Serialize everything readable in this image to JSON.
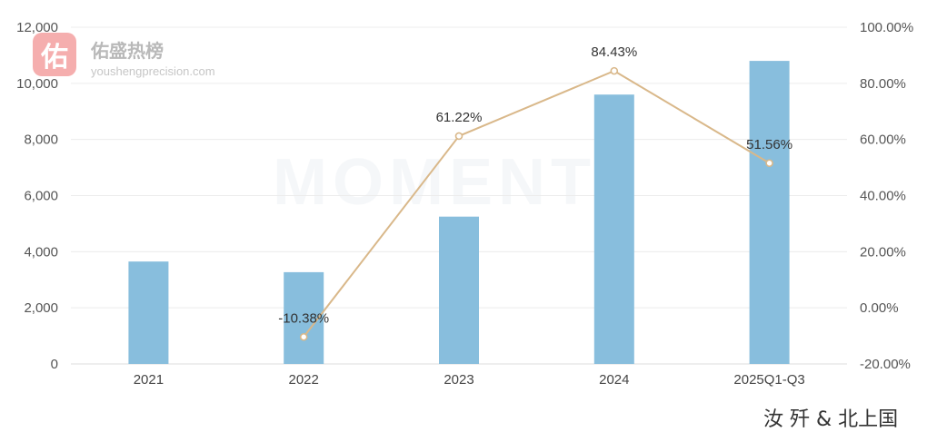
{
  "watermark": {
    "badge_char": "佑",
    "title": "佑盛热榜",
    "url": "youshengprecision.com",
    "center_text": "MOMENT"
  },
  "footer_partial_text": "汝 歼 & 北上国",
  "colors": {
    "bar": "#88bedd",
    "line": "#d9b88a",
    "grid": "#ececec"
  },
  "chart_data": {
    "type": "bar",
    "title": "",
    "xlabel": "",
    "ylabel": "",
    "categories": [
      "2021",
      "2022",
      "2023",
      "2024",
      "2025Q1-Q3"
    ],
    "series": [
      {
        "axis": "left",
        "type": "bar",
        "values": [
          3650,
          3270,
          5250,
          9600,
          10800
        ]
      },
      {
        "axis": "right",
        "type": "line",
        "values": [
          null,
          -10.38,
          61.22,
          84.43,
          51.56
        ],
        "labels": [
          "",
          "-10.38%",
          "61.22%",
          "84.43%",
          "51.56%"
        ]
      }
    ],
    "ylim": [
      0,
      12000
    ],
    "yticks": [
      "0",
      "2,000",
      "4,000",
      "6,000",
      "8,000",
      "10,000",
      "12,000"
    ],
    "y2lim": [
      -20,
      100
    ],
    "y2ticks": [
      "-20.00%",
      "0.00%",
      "20.00%",
      "40.00%",
      "60.00%",
      "80.00%",
      "100.00%"
    ],
    "grid": true,
    "legend": "none"
  }
}
